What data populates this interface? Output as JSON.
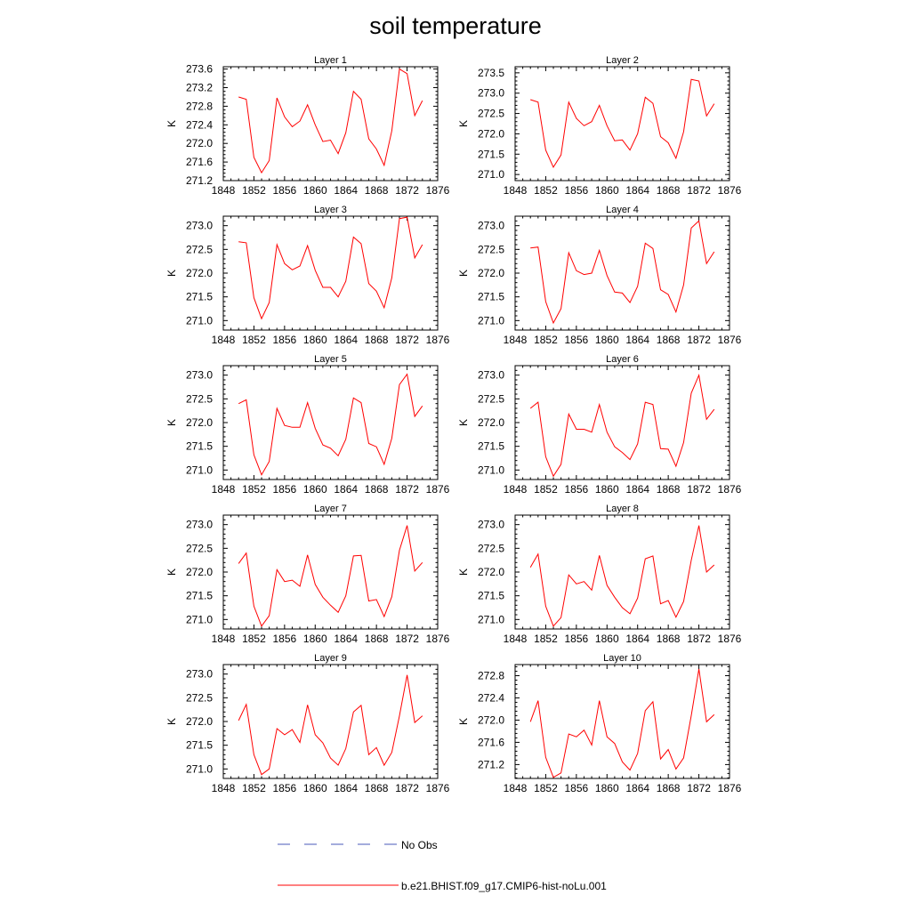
{
  "title": "soil temperature",
  "legend": {
    "entries": [
      {
        "label": "No Obs",
        "style": "dashed",
        "color": "#4a5ab8"
      },
      {
        "label": "b.e21.BHIST.f09_g17.CMIP6-hist-noLu.001",
        "style": "solid",
        "color": "#ff0000"
      }
    ]
  },
  "chart_data": [
    {
      "type": "line",
      "title": "Layer 1",
      "ylabel": "K",
      "xlim": [
        1848,
        1876
      ],
      "ylim": [
        271.2,
        273.65
      ],
      "xticks": [
        "1848",
        "1852",
        "1856",
        "1860",
        "1864",
        "1868",
        "1872",
        "1876"
      ],
      "yticks": [
        "271.2",
        "271.6",
        "272.0",
        "272.4",
        "272.8",
        "273.2",
        "273.6"
      ],
      "series": [
        {
          "name": "b.e21.BHIST.f09_g17.CMIP6-hist-noLu.001",
          "color": "#ff0000",
          "x": [
            1850,
            1851,
            1852,
            1853,
            1854,
            1855,
            1856,
            1857,
            1858,
            1859,
            1860,
            1861,
            1862,
            1863,
            1864,
            1865,
            1866,
            1867,
            1868,
            1869,
            1870,
            1871,
            1872,
            1873,
            1874
          ],
          "y": [
            273.0,
            272.95,
            271.7,
            271.37,
            271.63,
            272.98,
            272.57,
            272.36,
            272.48,
            272.83,
            272.4,
            272.04,
            272.07,
            271.78,
            272.23,
            273.12,
            272.95,
            272.1,
            271.88,
            271.53,
            272.27,
            273.6,
            273.5,
            272.6,
            272.92
          ]
        }
      ]
    },
    {
      "type": "line",
      "title": "Layer 2",
      "ylabel": "K",
      "xlim": [
        1848,
        1876
      ],
      "ylim": [
        270.85,
        273.65
      ],
      "xticks": [
        "1848",
        "1852",
        "1856",
        "1860",
        "1864",
        "1868",
        "1872",
        "1876"
      ],
      "yticks": [
        "271.0",
        "271.5",
        "272.0",
        "272.5",
        "273.0",
        "273.5"
      ],
      "series": [
        {
          "name": "b.e21.BHIST.f09_g17.CMIP6-hist-noLu.001",
          "color": "#ff0000",
          "x": [
            1850,
            1851,
            1852,
            1853,
            1854,
            1855,
            1856,
            1857,
            1858,
            1859,
            1860,
            1861,
            1862,
            1863,
            1864,
            1865,
            1866,
            1867,
            1868,
            1869,
            1870,
            1871,
            1872,
            1873,
            1874
          ],
          "y": [
            272.84,
            272.78,
            271.6,
            271.18,
            271.48,
            272.78,
            272.38,
            272.2,
            272.3,
            272.7,
            272.2,
            271.83,
            271.85,
            271.6,
            272.0,
            272.9,
            272.75,
            271.93,
            271.78,
            271.4,
            272.05,
            273.34,
            273.3,
            272.44,
            272.74
          ]
        }
      ]
    },
    {
      "type": "line",
      "title": "Layer 3",
      "ylabel": "K",
      "xlim": [
        1848,
        1876
      ],
      "ylim": [
        270.8,
        273.2
      ],
      "xticks": [
        "1848",
        "1852",
        "1856",
        "1860",
        "1864",
        "1868",
        "1872",
        "1876"
      ],
      "yticks": [
        "271.0",
        "271.5",
        "272.0",
        "272.5",
        "273.0"
      ],
      "series": [
        {
          "name": "b.e21.BHIST.f09_g17.CMIP6-hist-noLu.001",
          "color": "#ff0000",
          "x": [
            1850,
            1851,
            1852,
            1853,
            1854,
            1855,
            1856,
            1857,
            1858,
            1859,
            1860,
            1861,
            1862,
            1863,
            1864,
            1865,
            1866,
            1867,
            1868,
            1869,
            1870,
            1871,
            1872,
            1873,
            1874
          ],
          "y": [
            272.66,
            272.64,
            271.48,
            271.04,
            271.38,
            272.6,
            272.2,
            272.07,
            272.15,
            272.58,
            272.06,
            271.7,
            271.7,
            271.5,
            271.83,
            272.76,
            272.62,
            271.78,
            271.62,
            271.27,
            271.9,
            273.15,
            273.18,
            272.32,
            272.6
          ]
        }
      ]
    },
    {
      "type": "line",
      "title": "Layer 4",
      "ylabel": "K",
      "xlim": [
        1848,
        1876
      ],
      "ylim": [
        270.8,
        273.2
      ],
      "xticks": [
        "1848",
        "1852",
        "1856",
        "1860",
        "1864",
        "1868",
        "1872",
        "1876"
      ],
      "yticks": [
        "271.0",
        "271.5",
        "272.0",
        "272.5",
        "273.0"
      ],
      "series": [
        {
          "name": "b.e21.BHIST.f09_g17.CMIP6-hist-noLu.001",
          "color": "#ff0000",
          "x": [
            1850,
            1851,
            1852,
            1853,
            1854,
            1855,
            1856,
            1857,
            1858,
            1859,
            1860,
            1861,
            1862,
            1863,
            1864,
            1865,
            1866,
            1867,
            1868,
            1869,
            1870,
            1871,
            1872,
            1873,
            1874
          ],
          "y": [
            272.53,
            272.55,
            271.4,
            270.95,
            271.25,
            272.43,
            272.05,
            271.97,
            272.0,
            272.48,
            271.95,
            271.6,
            271.58,
            271.38,
            271.72,
            272.63,
            272.52,
            271.65,
            271.55,
            271.18,
            271.75,
            272.95,
            273.1,
            272.2,
            272.45
          ]
        }
      ]
    },
    {
      "type": "line",
      "title": "Layer 5",
      "ylabel": "K",
      "xlim": [
        1848,
        1876
      ],
      "ylim": [
        270.8,
        273.2
      ],
      "xticks": [
        "1848",
        "1852",
        "1856",
        "1860",
        "1864",
        "1868",
        "1872",
        "1876"
      ],
      "yticks": [
        "271.0",
        "271.5",
        "272.0",
        "272.5",
        "273.0"
      ],
      "series": [
        {
          "name": "b.e21.BHIST.f09_g17.CMIP6-hist-noLu.001",
          "color": "#ff0000",
          "x": [
            1850,
            1851,
            1852,
            1853,
            1854,
            1855,
            1856,
            1857,
            1858,
            1859,
            1860,
            1861,
            1862,
            1863,
            1864,
            1865,
            1866,
            1867,
            1868,
            1869,
            1870,
            1871,
            1872,
            1873,
            1874
          ],
          "y": [
            272.4,
            272.48,
            271.32,
            270.9,
            271.18,
            272.3,
            271.94,
            271.9,
            271.9,
            272.42,
            271.88,
            271.53,
            271.46,
            271.3,
            271.65,
            272.52,
            272.42,
            271.56,
            271.49,
            271.12,
            271.67,
            272.8,
            273.02,
            272.13,
            272.35
          ]
        }
      ]
    },
    {
      "type": "line",
      "title": "Layer 6",
      "ylabel": "K",
      "xlim": [
        1848,
        1876
      ],
      "ylim": [
        270.8,
        273.2
      ],
      "xticks": [
        "1848",
        "1852",
        "1856",
        "1860",
        "1864",
        "1868",
        "1872",
        "1876"
      ],
      "yticks": [
        "271.0",
        "271.5",
        "272.0",
        "272.5",
        "273.0"
      ],
      "series": [
        {
          "name": "b.e21.BHIST.f09_g17.CMIP6-hist-noLu.001",
          "color": "#ff0000",
          "x": [
            1850,
            1851,
            1852,
            1853,
            1854,
            1855,
            1856,
            1857,
            1858,
            1859,
            1860,
            1861,
            1862,
            1863,
            1864,
            1865,
            1866,
            1867,
            1868,
            1869,
            1870,
            1871,
            1872,
            1873,
            1874
          ],
          "y": [
            272.3,
            272.43,
            271.28,
            270.87,
            271.12,
            272.18,
            271.86,
            271.86,
            271.8,
            272.38,
            271.8,
            271.49,
            271.37,
            271.22,
            271.55,
            272.43,
            272.38,
            271.45,
            271.44,
            271.08,
            271.58,
            272.62,
            273.0,
            272.07,
            272.28
          ]
        }
      ]
    },
    {
      "type": "line",
      "title": "Layer 7",
      "ylabel": "K",
      "xlim": [
        1848,
        1876
      ],
      "ylim": [
        270.8,
        273.2
      ],
      "xticks": [
        "1848",
        "1852",
        "1856",
        "1860",
        "1864",
        "1868",
        "1872",
        "1876"
      ],
      "yticks": [
        "271.0",
        "271.5",
        "272.0",
        "272.5",
        "273.0"
      ],
      "series": [
        {
          "name": "b.e21.BHIST.f09_g17.CMIP6-hist-noLu.001",
          "color": "#ff0000",
          "x": [
            1850,
            1851,
            1852,
            1853,
            1854,
            1855,
            1856,
            1857,
            1858,
            1859,
            1860,
            1861,
            1862,
            1863,
            1864,
            1865,
            1866,
            1867,
            1868,
            1869,
            1870,
            1871,
            1872,
            1873,
            1874
          ],
          "y": [
            272.18,
            272.4,
            271.28,
            270.86,
            271.08,
            272.05,
            271.8,
            271.83,
            271.7,
            272.36,
            271.74,
            271.47,
            271.3,
            271.15,
            271.5,
            272.34,
            272.35,
            271.39,
            271.42,
            271.06,
            271.48,
            272.46,
            272.98,
            272.02,
            272.2
          ]
        }
      ]
    },
    {
      "type": "line",
      "title": "Layer 8",
      "ylabel": "K",
      "xlim": [
        1848,
        1876
      ],
      "ylim": [
        270.8,
        273.2
      ],
      "xticks": [
        "1848",
        "1852",
        "1856",
        "1860",
        "1864",
        "1868",
        "1872",
        "1876"
      ],
      "yticks": [
        "271.0",
        "271.5",
        "272.0",
        "272.5",
        "273.0"
      ],
      "series": [
        {
          "name": "b.e21.BHIST.f09_g17.CMIP6-hist-noLu.001",
          "color": "#ff0000",
          "x": [
            1850,
            1851,
            1852,
            1853,
            1854,
            1855,
            1856,
            1857,
            1858,
            1859,
            1860,
            1861,
            1862,
            1863,
            1864,
            1865,
            1866,
            1867,
            1868,
            1869,
            1870,
            1871,
            1872,
            1873,
            1874
          ],
          "y": [
            272.1,
            272.38,
            271.28,
            270.86,
            271.04,
            271.94,
            271.75,
            271.8,
            271.62,
            272.35,
            271.72,
            271.47,
            271.25,
            271.12,
            271.45,
            272.28,
            272.34,
            271.33,
            271.4,
            271.05,
            271.38,
            272.25,
            272.98,
            272.0,
            272.15
          ]
        }
      ]
    },
    {
      "type": "line",
      "title": "Layer 9",
      "ylabel": "K",
      "xlim": [
        1848,
        1876
      ],
      "ylim": [
        270.8,
        273.2
      ],
      "xticks": [
        "1848",
        "1852",
        "1856",
        "1860",
        "1864",
        "1868",
        "1872",
        "1876"
      ],
      "yticks": [
        "271.0",
        "271.5",
        "272.0",
        "272.5",
        "273.0"
      ],
      "series": [
        {
          "name": "b.e21.BHIST.f09_g17.CMIP6-hist-noLu.001",
          "color": "#ff0000",
          "x": [
            1850,
            1851,
            1852,
            1853,
            1854,
            1855,
            1856,
            1857,
            1858,
            1859,
            1860,
            1861,
            1862,
            1863,
            1864,
            1865,
            1866,
            1867,
            1868,
            1869,
            1870,
            1871,
            1872,
            1873,
            1874
          ],
          "y": [
            272.02,
            272.36,
            271.3,
            270.88,
            271.0,
            271.85,
            271.72,
            271.83,
            271.56,
            272.35,
            271.72,
            271.55,
            271.23,
            271.08,
            271.43,
            272.2,
            272.34,
            271.3,
            271.45,
            271.08,
            271.35,
            272.12,
            272.98,
            271.98,
            272.12
          ]
        }
      ]
    },
    {
      "type": "line",
      "title": "Layer 10",
      "ylabel": "K",
      "xlim": [
        1848,
        1876
      ],
      "ylim": [
        270.95,
        273.0
      ],
      "xticks": [
        "1848",
        "1852",
        "1856",
        "1860",
        "1864",
        "1868",
        "1872",
        "1876"
      ],
      "yticks": [
        "271.2",
        "271.6",
        "272.0",
        "272.4",
        "272.8"
      ],
      "series": [
        {
          "name": "b.e21.BHIST.f09_g17.CMIP6-hist-noLu.001",
          "color": "#ff0000",
          "x": [
            1850,
            1851,
            1852,
            1853,
            1854,
            1855,
            1856,
            1857,
            1858,
            1859,
            1860,
            1861,
            1862,
            1863,
            1864,
            1865,
            1866,
            1867,
            1868,
            1869,
            1870,
            1871,
            1872,
            1873,
            1874
          ],
          "y": [
            271.97,
            272.35,
            271.33,
            270.97,
            271.05,
            271.75,
            271.7,
            271.82,
            271.55,
            272.35,
            271.7,
            271.58,
            271.25,
            271.1,
            271.4,
            272.17,
            272.33,
            271.3,
            271.47,
            271.12,
            271.32,
            272.08,
            272.92,
            271.97,
            272.1
          ]
        }
      ]
    }
  ]
}
